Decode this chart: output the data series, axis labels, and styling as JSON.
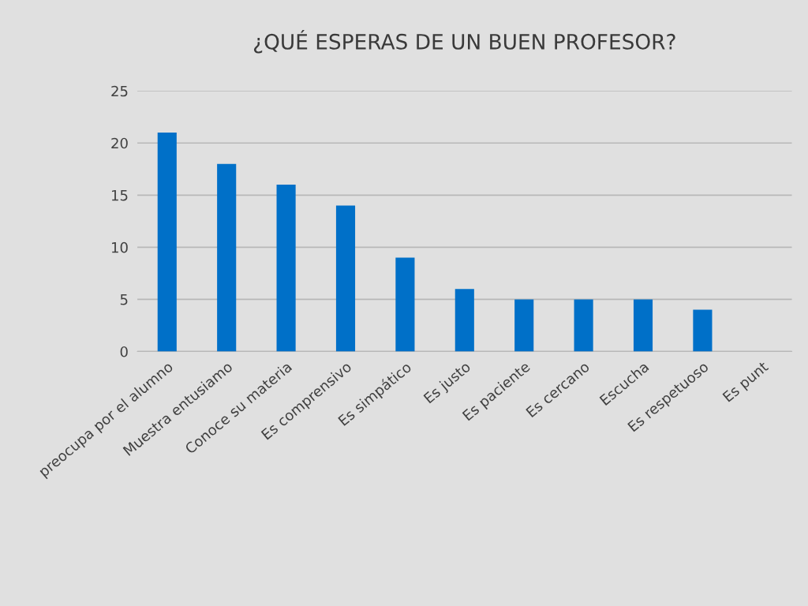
{
  "chart_data": {
    "type": "bar",
    "title": "¿QUÉ ESPERAS DE UN BUEN PROFESOR?",
    "categories": [
      "preocupa por el alumno",
      "Muestra entusiamo",
      "Conoce su materia",
      "Es comprensivo",
      "Es simpático",
      "Es justo",
      "Es paciente",
      "Es cercano",
      "Escucha",
      "Es respetuoso",
      "Es punt"
    ],
    "values": [
      21,
      18,
      16,
      14,
      9,
      6,
      5,
      5,
      5,
      4,
      null
    ],
    "color": "#0070c8",
    "ylim": [
      0,
      25
    ],
    "yticks": [
      0,
      5,
      10,
      15,
      20,
      25
    ],
    "grid": "y"
  }
}
